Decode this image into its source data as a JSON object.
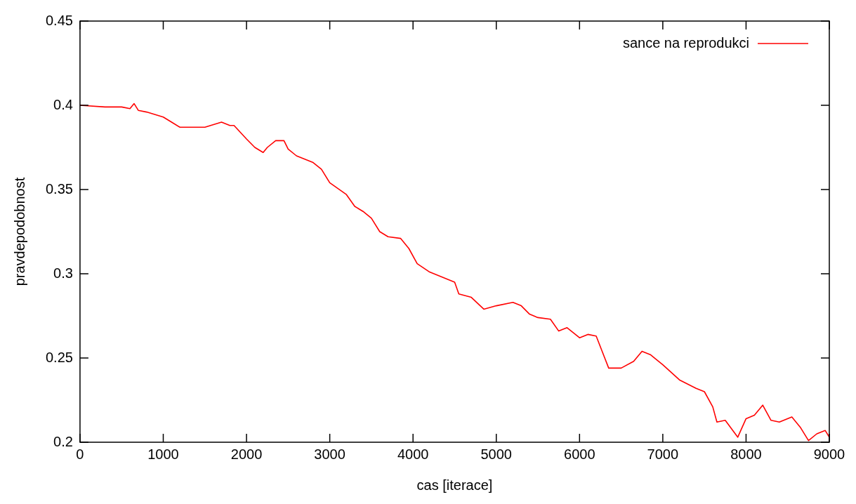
{
  "chart_data": {
    "type": "line",
    "xlabel": "cas [iterace]",
    "ylabel": "pravdepodobnost",
    "xlim": [
      0,
      9000
    ],
    "ylim": [
      0.2,
      0.45
    ],
    "xticks": [
      0,
      1000,
      2000,
      3000,
      4000,
      5000,
      6000,
      7000,
      8000,
      9000
    ],
    "yticks": [
      0.2,
      0.25,
      0.3,
      0.35,
      0.4,
      0.45
    ],
    "grid": false,
    "legend": "top right",
    "marker": "none",
    "line_style": "solid",
    "x": [
      0,
      300,
      500,
      600,
      650,
      700,
      800,
      1000,
      1100,
      1200,
      1500,
      1700,
      1800,
      1850,
      2000,
      2100,
      2200,
      2250,
      2350,
      2450,
      2500,
      2600,
      2800,
      2900,
      3000,
      3200,
      3300,
      3400,
      3500,
      3600,
      3700,
      3850,
      3950,
      4050,
      4200,
      4350,
      4500,
      4550,
      4700,
      4850,
      5000,
      5200,
      5300,
      5400,
      5500,
      5650,
      5750,
      5850,
      6000,
      6100,
      6200,
      6350,
      6500,
      6650,
      6750,
      6850,
      7000,
      7200,
      7400,
      7500,
      7600,
      7650,
      7750,
      7900,
      8000,
      8100,
      8200,
      8300,
      8400,
      8550,
      8650,
      8750,
      8850,
      8950,
      9000
    ],
    "series": [
      {
        "name": "sance na reprodukci",
        "color": "#ff0000",
        "values": [
          0.4,
          0.399,
          0.399,
          0.398,
          0.401,
          0.397,
          0.396,
          0.393,
          0.39,
          0.387,
          0.387,
          0.39,
          0.388,
          0.388,
          0.38,
          0.375,
          0.372,
          0.375,
          0.379,
          0.379,
          0.374,
          0.37,
          0.366,
          0.362,
          0.354,
          0.347,
          0.34,
          0.337,
          0.333,
          0.325,
          0.322,
          0.321,
          0.315,
          0.306,
          0.301,
          0.298,
          0.295,
          0.288,
          0.286,
          0.279,
          0.281,
          0.283,
          0.281,
          0.276,
          0.274,
          0.273,
          0.266,
          0.268,
          0.262,
          0.264,
          0.263,
          0.244,
          0.244,
          0.248,
          0.254,
          0.252,
          0.246,
          0.237,
          0.232,
          0.23,
          0.221,
          0.212,
          0.213,
          0.203,
          0.214,
          0.216,
          0.222,
          0.213,
          0.212,
          0.215,
          0.209,
          0.201,
          0.205,
          0.207,
          0.203
        ]
      }
    ]
  }
}
